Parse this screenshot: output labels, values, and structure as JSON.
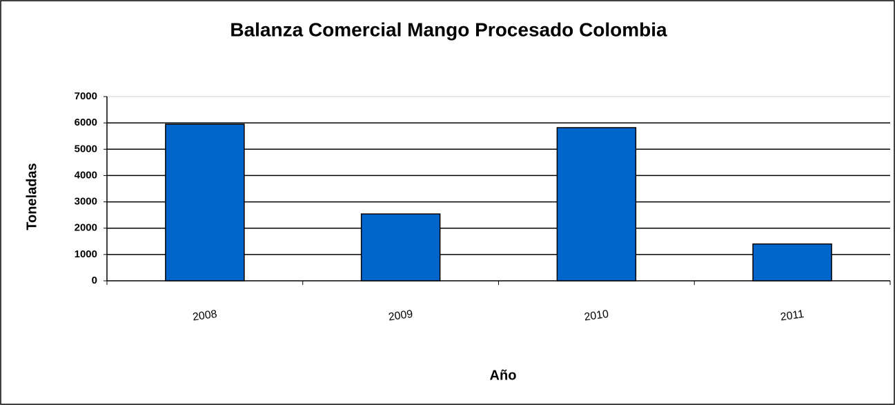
{
  "chart_data": {
    "type": "bar",
    "title": "Balanza Comercial Mango Procesado Colombia",
    "x_label": "Año",
    "y_label": "Toneladas",
    "categories": [
      "2008",
      "2009",
      "2010",
      "2011"
    ],
    "values": [
      5950,
      2540,
      5820,
      1400
    ],
    "color": "#0066cc",
    "ylim": [
      0,
      7000
    ],
    "yticks": [
      0,
      1000,
      2000,
      3000,
      4000,
      5000,
      6000,
      7000
    ],
    "grid": true
  }
}
